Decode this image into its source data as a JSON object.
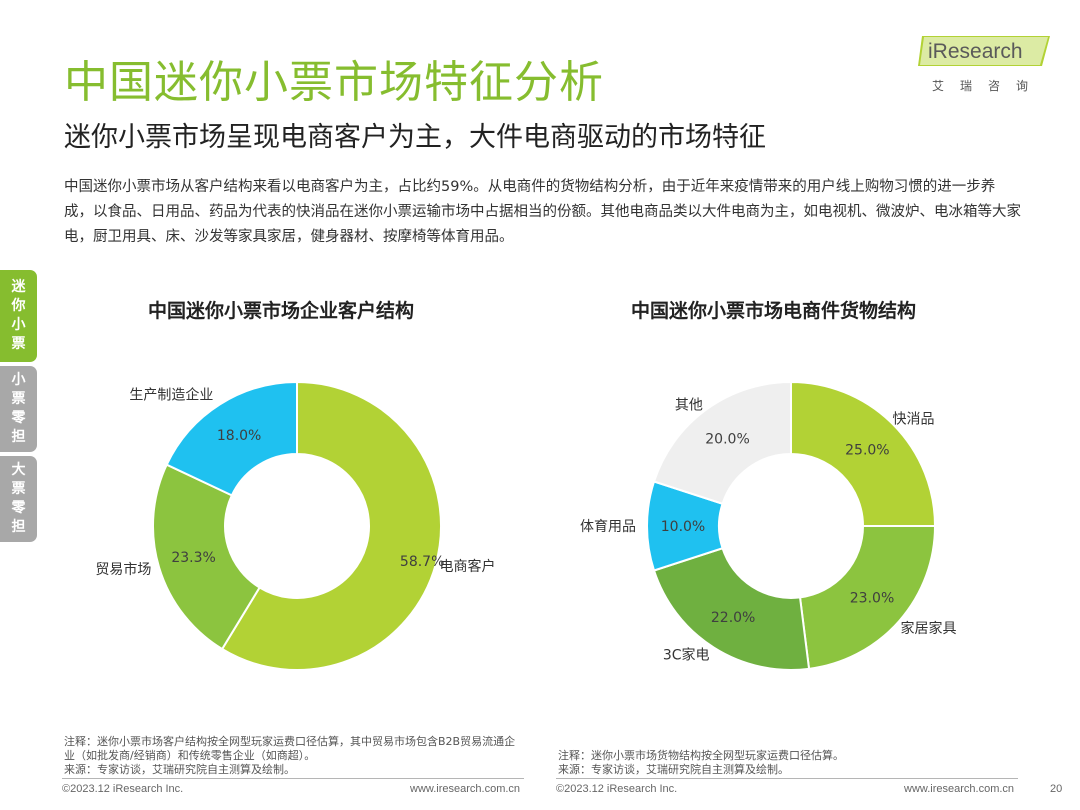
{
  "title": "中国迷你小票市场特征分析",
  "subtitle": "迷你小票市场呈现电商客户为主，大件电商驱动的市场特征",
  "paragraph": "中国迷你小票市场从客户结构来看以电商客户为主，占比约59%。从电商件的货物结构分析，由于近年来疫情带来的用户线上购物习惯的进一步养成，以食品、日用品、药品为代表的快消品在迷你小票运输市场中占据相当的份额。其他电商品类以大件电商为主，如电视机、微波炉、电冰箱等大家电，厨卫用具、床、沙发等家具家居，健身器材、按摩椅等体育用品。",
  "logo": {
    "text": "iResearch",
    "cn": "艾瑞咨询"
  },
  "side_tabs": [
    {
      "label": "迷你小票",
      "active": true
    },
    {
      "label": "小票零担",
      "active": false
    },
    {
      "label": "大票零担",
      "active": false
    }
  ],
  "colors": {
    "brand_green": "#86bd2f",
    "lime": "#b2d235",
    "green": "#8cc43f",
    "dark_green": "#6fb040",
    "cyan": "#1fc1f0",
    "light_gray": "#efefef",
    "tab_gray": "#a8a8a8"
  },
  "chart_data": [
    {
      "type": "pie",
      "title": "中国迷你小票市场企业客户结构",
      "categories": [
        "电商客户",
        "贸易市场",
        "生产制造企业"
      ],
      "values": [
        58.7,
        23.3,
        18.0
      ],
      "value_labels": [
        "58.7%",
        "23.3%",
        "18.0%"
      ],
      "colors": [
        "#b2d235",
        "#8cc43f",
        "#1fc1f0"
      ],
      "donut": true
    },
    {
      "type": "pie",
      "title": "中国迷你小票市场电商件货物结构",
      "categories": [
        "快消品",
        "家居家具",
        "3C家电",
        "体育用品",
        "其他"
      ],
      "values": [
        25.0,
        23.0,
        22.0,
        10.0,
        20.0
      ],
      "value_labels": [
        "25.0%",
        "23.0%",
        "22.0%",
        "10.0%",
        "20.0%"
      ],
      "colors": [
        "#b2d235",
        "#8cc43f",
        "#6fb040",
        "#1fc1f0",
        "#efefef"
      ],
      "donut": true
    }
  ],
  "notes": {
    "left": "注释：迷你小票市场客户结构按全网型玩家运费口径估算，其中贸易市场包含B2B贸易流通企业（如批发商/经销商）和传统零售企业（如商超）。",
    "left_source": "来源：专家访谈，艾瑞研究院自主测算及绘制。",
    "right": "注释：迷你小票市场货物结构按全网型玩家运费口径估算。",
    "right_source": "来源：专家访谈，艾瑞研究院自主测算及绘制。"
  },
  "footer": {
    "copyright": "©2023.12 iResearch Inc.",
    "website": "www.iresearch.com.cn",
    "page": "20"
  }
}
